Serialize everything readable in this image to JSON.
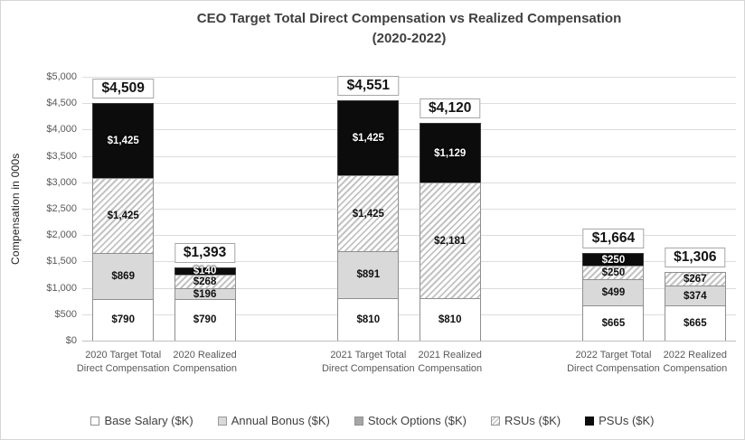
{
  "title": {
    "line1": "CEO Target Total Direct Compensation vs Realized Compensation",
    "line2": "(2020-2022)"
  },
  "colors": {
    "title_text": "#3f3f3f",
    "axis_text": "#595959",
    "grid_line": "#dcdcdc",
    "axis_baseline": "#bfbfbf",
    "bar_border": "#8f8f8f",
    "psu_black": "#0c0c0c",
    "annual_bonus_gray": "#d9d9d9",
    "stock_options_gray": "#a6a6a6",
    "hatch_stripe_gray": "#c3c3c3",
    "total_label_box_border": "#a6a6a6"
  },
  "chart_data": {
    "type": "bar",
    "stacked": true,
    "title": "CEO Target Total Direct Compensation vs Realized Compensation (2020-2022)",
    "ylabel": "Compensation in 000s",
    "xlabel": "",
    "ylim": [
      0,
      5000
    ],
    "ytick_step": 500,
    "grid": true,
    "legend_position": "bottom",
    "yticks": [
      {
        "value": 0,
        "label": "$0"
      },
      {
        "value": 500,
        "label": "$500"
      },
      {
        "value": 1000,
        "label": "$1,000"
      },
      {
        "value": 1500,
        "label": "$1,500"
      },
      {
        "value": 2000,
        "label": "$2,000"
      },
      {
        "value": 2500,
        "label": "$2,500"
      },
      {
        "value": 3000,
        "label": "$3,000"
      },
      {
        "value": 3500,
        "label": "$3,500"
      },
      {
        "value": 4000,
        "label": "$4,000"
      },
      {
        "value": 4500,
        "label": "$4,500"
      },
      {
        "value": 5000,
        "label": "$5,000"
      }
    ],
    "legend": [
      {
        "series": "base_salary",
        "label": "Base Salary ($K)"
      },
      {
        "series": "annual_bonus",
        "label": "Annual Bonus ($K)"
      },
      {
        "series": "stock_options",
        "label": "Stock Options ($K)"
      },
      {
        "series": "rsus",
        "label": "RSUs ($K)"
      },
      {
        "series": "psus",
        "label": "PSUs ($K)"
      }
    ],
    "bars": [
      {
        "category": "2020 Target Total Direct Compensation",
        "slot": 0,
        "total_value": 4509,
        "total_label": "$4,509",
        "segments": [
          {
            "series": "base_salary",
            "value": 790,
            "label": "$790"
          },
          {
            "series": "annual_bonus",
            "value": 869,
            "label": "$869"
          },
          {
            "series": "rsus",
            "value": 1425,
            "label": "$1,425"
          },
          {
            "series": "psus",
            "value": 1425,
            "label": "$1,425"
          }
        ]
      },
      {
        "category": "2020 Realized Compensation",
        "slot": 1,
        "total_value": 1393,
        "total_label": "$1,393",
        "segments": [
          {
            "series": "base_salary",
            "value": 790,
            "label": "$790"
          },
          {
            "series": "annual_bonus",
            "value": 196,
            "label": "$196"
          },
          {
            "series": "rsus",
            "value": 268,
            "label": "$268"
          },
          {
            "series": "psus",
            "value": 140,
            "label": "$140"
          }
        ]
      },
      {
        "category": "2021 Target Total Direct Compensation",
        "slot": 3,
        "total_value": 4551,
        "total_label": "$4,551",
        "segments": [
          {
            "series": "base_salary",
            "value": 810,
            "label": "$810"
          },
          {
            "series": "annual_bonus",
            "value": 891,
            "label": "$891"
          },
          {
            "series": "rsus",
            "value": 1425,
            "label": "$1,425"
          },
          {
            "series": "psus",
            "value": 1425,
            "label": "$1,425"
          }
        ]
      },
      {
        "category": "2021 Realized Compensation",
        "slot": 4,
        "total_value": 4120,
        "total_label": "$4,120",
        "segments": [
          {
            "series": "base_salary",
            "value": 810,
            "label": "$810"
          },
          {
            "series": "rsus",
            "value": 2181,
            "label": "$2,181"
          },
          {
            "series": "psus",
            "value": 1129,
            "label": "$1,129"
          }
        ]
      },
      {
        "category": "2022 Target Total Direct Compensation",
        "slot": 6,
        "total_value": 1664,
        "total_label": "$1,664",
        "segments": [
          {
            "series": "base_salary",
            "value": 665,
            "label": "$665"
          },
          {
            "series": "annual_bonus",
            "value": 499,
            "label": "$499"
          },
          {
            "series": "rsus",
            "value": 250,
            "label": "$250"
          },
          {
            "series": "psus",
            "value": 250,
            "label": "$250"
          }
        ]
      },
      {
        "category": "2022 Realized Compensation",
        "slot": 7,
        "total_value": 1306,
        "total_label": "$1,306",
        "segments": [
          {
            "series": "base_salary",
            "value": 665,
            "label": "$665"
          },
          {
            "series": "annual_bonus",
            "value": 374,
            "label": "$374"
          },
          {
            "series": "rsus",
            "value": 267,
            "label": "$267"
          }
        ]
      }
    ]
  }
}
